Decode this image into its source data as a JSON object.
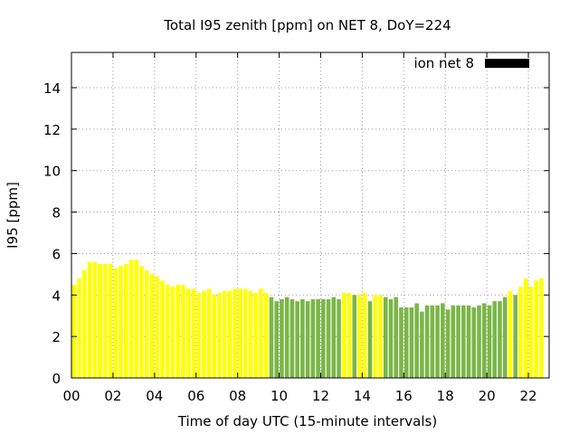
{
  "chart_data": {
    "type": "bar",
    "title": "Total I95 zenith [ppm] on NET 8, DoY=224",
    "xlabel": "Time of day UTC (15-minute intervals)",
    "ylabel": "I95 [ppm]",
    "xlim": [
      0,
      23
    ],
    "ylim": [
      0,
      15.7
    ],
    "x_ticks": [
      "00",
      "02",
      "04",
      "06",
      "08",
      "10",
      "12",
      "14",
      "16",
      "18",
      "20",
      "22"
    ],
    "y_ticks": [
      "0",
      "2",
      "4",
      "6",
      "8",
      "10",
      "12",
      "14"
    ],
    "grid": true,
    "legend": {
      "label": "ion net 8",
      "color": "#000000",
      "position": "top-right"
    },
    "colors": {
      "yellow": "#ffff00",
      "green": "#7ab648",
      "frame": "#000000",
      "grid": "#999999"
    },
    "values": [
      4.5,
      4.8,
      5.2,
      5.6,
      5.6,
      5.5,
      5.5,
      5.5,
      5.3,
      5.4,
      5.5,
      5.7,
      5.7,
      5.4,
      5.2,
      5.0,
      4.9,
      4.7,
      4.5,
      4.4,
      4.5,
      4.5,
      4.3,
      4.3,
      4.1,
      4.2,
      4.3,
      4.0,
      4.1,
      4.2,
      4.2,
      4.3,
      4.3,
      4.3,
      4.2,
      4.1,
      4.3,
      4.1,
      3.9,
      3.7,
      3.8,
      3.9,
      3.8,
      3.7,
      3.8,
      3.7,
      3.8,
      3.8,
      3.8,
      3.8,
      3.9,
      3.8,
      4.1,
      4.1,
      4.0,
      4.0,
      4.1,
      3.7,
      4.0,
      4.0,
      3.9,
      3.8,
      3.9,
      3.4,
      3.4,
      3.4,
      3.6,
      3.2,
      3.5,
      3.5,
      3.5,
      3.6,
      3.3,
      3.5,
      3.5,
      3.5,
      3.5,
      3.4,
      3.5,
      3.6,
      3.5,
      3.7,
      3.7,
      3.9,
      4.2,
      4.0,
      4.4,
      4.8,
      4.4,
      4.7,
      4.8
    ],
    "bar_colors": [
      "y",
      "y",
      "y",
      "y",
      "y",
      "y",
      "y",
      "y",
      "y",
      "y",
      "y",
      "y",
      "y",
      "y",
      "y",
      "y",
      "y",
      "y",
      "y",
      "y",
      "y",
      "y",
      "y",
      "y",
      "y",
      "y",
      "y",
      "y",
      "y",
      "y",
      "y",
      "y",
      "y",
      "y",
      "y",
      "y",
      "y",
      "y",
      "g",
      "g",
      "g",
      "g",
      "g",
      "g",
      "g",
      "g",
      "g",
      "g",
      "g",
      "g",
      "g",
      "g",
      "y",
      "y",
      "g",
      "y",
      "y",
      "g",
      "y",
      "y",
      "g",
      "g",
      "g",
      "g",
      "g",
      "g",
      "g",
      "g",
      "g",
      "g",
      "g",
      "g",
      "g",
      "g",
      "g",
      "g",
      "g",
      "g",
      "g",
      "g",
      "g",
      "g",
      "g",
      "g",
      "y",
      "g",
      "y",
      "y",
      "y",
      "y",
      "y"
    ]
  }
}
